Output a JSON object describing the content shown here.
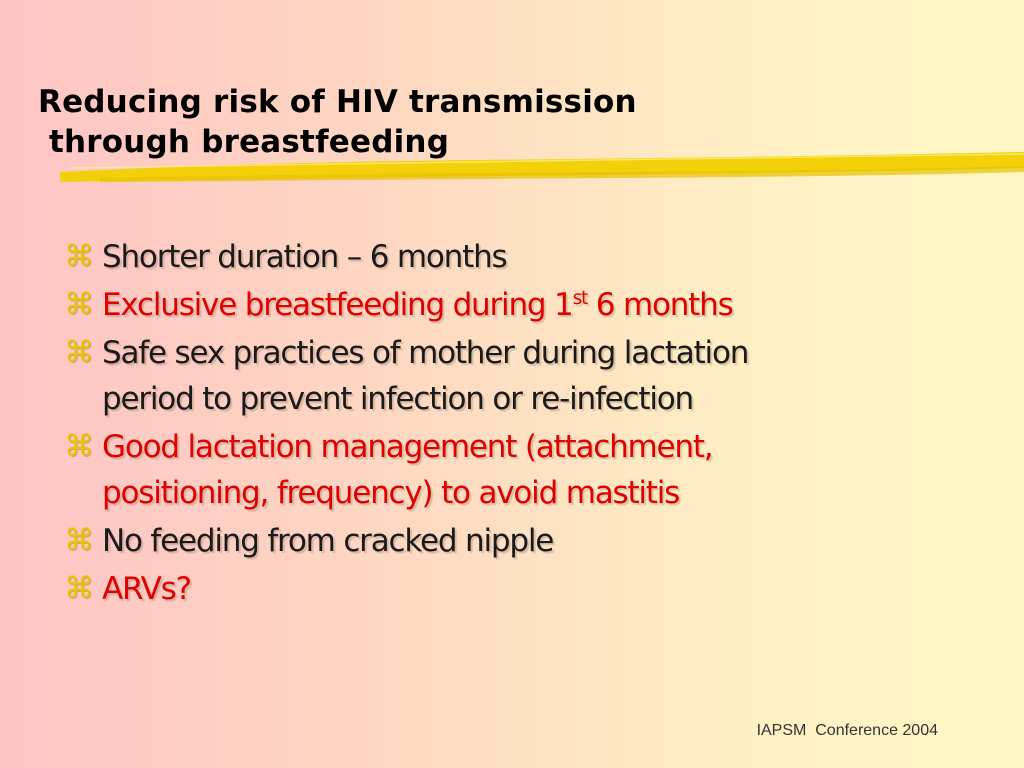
{
  "slide": {
    "title_lines": [
      "Reducing risk of HIV transmission",
      " through breastfeeding"
    ],
    "bullet_symbol": "⌘",
    "colors": {
      "bullet_icon": "#e8c400",
      "black_text": "#1a1a1a",
      "red_text": "#e00000",
      "underline_stroke": "#f2d000"
    },
    "bullets": [
      {
        "text": "Shorter duration – 6 months",
        "color": "black"
      },
      {
        "text_before": "Exclusive breastfeeding during 1",
        "superscript": "st",
        "text_after": " 6 months",
        "color": "red"
      },
      {
        "lines": [
          "Safe sex practices of mother during lactation",
          "period to prevent infection or re-infection"
        ],
        "color": "black"
      },
      {
        "lines": [
          "Good lactation management (attachment,",
          "positioning, frequency) to avoid mastitis"
        ],
        "color": "red"
      },
      {
        "text": "No feeding from cracked nipple",
        "color": "black"
      },
      {
        "text": "ARVs?",
        "color": "red"
      }
    ],
    "footer": "IAPSM  Conference 2004"
  }
}
